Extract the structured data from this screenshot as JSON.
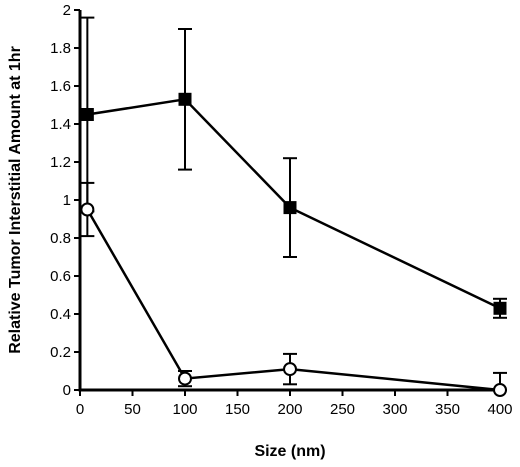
{
  "chart_data": {
    "type": "line",
    "title": "",
    "xlabel": "Size (nm)",
    "ylabel": "Relative Tumor Interstitial Amount at 1hr",
    "xlim": [
      0,
      400
    ],
    "ylim": [
      0,
      2
    ],
    "xticks": [
      0,
      50,
      100,
      150,
      200,
      250,
      300,
      350,
      400
    ],
    "xtick_labels": [
      "0",
      "50",
      "100",
      "150",
      "200",
      "250",
      "300",
      "350",
      "400"
    ],
    "yticks": [
      0,
      0.2,
      0.4,
      0.6,
      0.8,
      1,
      1.2,
      1.4,
      1.6,
      1.8,
      2
    ],
    "ytick_labels": [
      "0",
      "0.2",
      "0.4",
      "0.6",
      "0.8",
      "1",
      "1.2",
      "1.4",
      "1.6",
      "1.8",
      "2"
    ],
    "grid": false,
    "legend": "none",
    "series": [
      {
        "marker": "filled-square",
        "color": "#000000",
        "x": [
          7,
          100,
          200,
          400
        ],
        "y": [
          1.45,
          1.53,
          0.96,
          0.43
        ],
        "err": [
          0.51,
          0.37,
          0.26,
          0.05
        ]
      },
      {
        "marker": "open-circle",
        "color": "#000000",
        "x": [
          7,
          100,
          200,
          400
        ],
        "y": [
          0.95,
          0.06,
          0.11,
          0.0
        ],
        "err": [
          0.14,
          0.04,
          0.08,
          0.09
        ]
      }
    ]
  }
}
